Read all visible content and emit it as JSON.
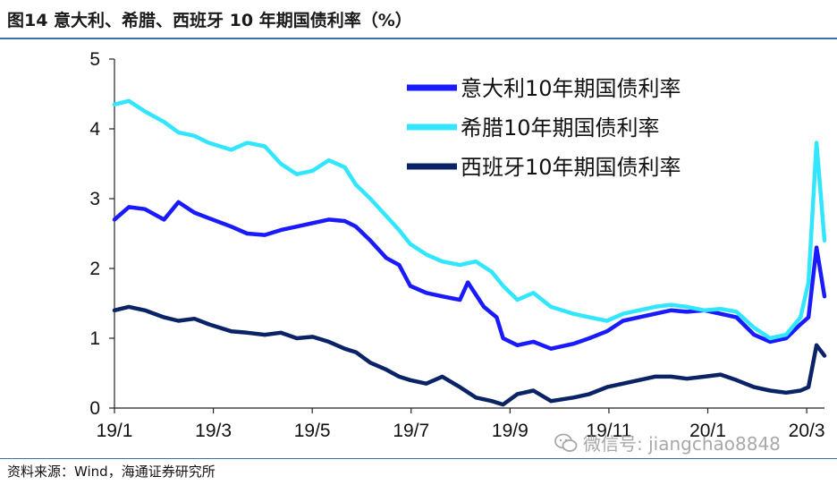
{
  "header": {
    "title": "图14 意大利、希腊、西班牙 10 年期国债利率（%）"
  },
  "footer": {
    "source": "资料来源：Wind，海通证券研究所",
    "watermark": "微信号: jiangchao8848"
  },
  "chart_data": {
    "type": "line",
    "title": "图14 意大利、希腊、西班牙 10 年期国债利率（%）",
    "xlabel": "",
    "ylabel": "",
    "ylim": [
      0,
      5
    ],
    "yticks": [
      "0",
      "1",
      "2",
      "3",
      "4",
      "5"
    ],
    "xticks": [
      "19/1",
      "19/3",
      "19/5",
      "19/7",
      "19/9",
      "19/11",
      "20/1",
      "20/3"
    ],
    "xlim": [
      "2019-01-01",
      "2020-03-20"
    ],
    "legend_position": "top-right",
    "grid": false,
    "series": [
      {
        "name": "意大利10年期国债利率",
        "color": "#1a1aff",
        "points": [
          [
            "2019-01-01",
            2.7
          ],
          [
            "2019-01-10",
            2.88
          ],
          [
            "2019-01-20",
            2.85
          ],
          [
            "2019-02-01",
            2.7
          ],
          [
            "2019-02-10",
            2.95
          ],
          [
            "2019-02-20",
            2.8
          ],
          [
            "2019-03-01",
            2.72
          ],
          [
            "2019-03-15",
            2.6
          ],
          [
            "2019-03-25",
            2.5
          ],
          [
            "2019-04-05",
            2.48
          ],
          [
            "2019-04-15",
            2.55
          ],
          [
            "2019-04-25",
            2.6
          ],
          [
            "2019-05-05",
            2.65
          ],
          [
            "2019-05-15",
            2.7
          ],
          [
            "2019-05-25",
            2.68
          ],
          [
            "2019-06-01",
            2.6
          ],
          [
            "2019-06-10",
            2.4
          ],
          [
            "2019-06-20",
            2.15
          ],
          [
            "2019-06-28",
            2.05
          ],
          [
            "2019-07-05",
            1.75
          ],
          [
            "2019-07-15",
            1.65
          ],
          [
            "2019-07-25",
            1.6
          ],
          [
            "2019-08-05",
            1.55
          ],
          [
            "2019-08-10",
            1.8
          ],
          [
            "2019-08-20",
            1.45
          ],
          [
            "2019-08-28",
            1.3
          ],
          [
            "2019-09-01",
            1.0
          ],
          [
            "2019-09-10",
            0.9
          ],
          [
            "2019-09-20",
            0.95
          ],
          [
            "2019-10-01",
            0.85
          ],
          [
            "2019-10-15",
            0.92
          ],
          [
            "2019-10-25",
            1.0
          ],
          [
            "2019-11-05",
            1.1
          ],
          [
            "2019-11-15",
            1.25
          ],
          [
            "2019-11-25",
            1.3
          ],
          [
            "2019-12-05",
            1.35
          ],
          [
            "2019-12-15",
            1.4
          ],
          [
            "2019-12-25",
            1.38
          ],
          [
            "2020-01-05",
            1.4
          ],
          [
            "2020-01-15",
            1.35
          ],
          [
            "2020-01-25",
            1.3
          ],
          [
            "2020-02-05",
            1.05
          ],
          [
            "2020-02-15",
            0.95
          ],
          [
            "2020-02-25",
            1.0
          ],
          [
            "2020-03-05",
            1.2
          ],
          [
            "2020-03-10",
            1.3
          ],
          [
            "2020-03-15",
            2.3
          ],
          [
            "2020-03-20",
            1.6
          ]
        ]
      },
      {
        "name": "希腊10年期国债利率",
        "color": "#33e6ff",
        "points": [
          [
            "2019-01-01",
            4.35
          ],
          [
            "2019-01-10",
            4.4
          ],
          [
            "2019-01-20",
            4.25
          ],
          [
            "2019-02-01",
            4.1
          ],
          [
            "2019-02-10",
            3.95
          ],
          [
            "2019-02-20",
            3.9
          ],
          [
            "2019-03-01",
            3.8
          ],
          [
            "2019-03-15",
            3.7
          ],
          [
            "2019-03-25",
            3.8
          ],
          [
            "2019-04-05",
            3.75
          ],
          [
            "2019-04-15",
            3.5
          ],
          [
            "2019-04-25",
            3.35
          ],
          [
            "2019-05-05",
            3.4
          ],
          [
            "2019-05-15",
            3.55
          ],
          [
            "2019-05-25",
            3.45
          ],
          [
            "2019-06-01",
            3.2
          ],
          [
            "2019-06-10",
            3.0
          ],
          [
            "2019-06-20",
            2.75
          ],
          [
            "2019-06-28",
            2.55
          ],
          [
            "2019-07-05",
            2.35
          ],
          [
            "2019-07-15",
            2.2
          ],
          [
            "2019-07-25",
            2.1
          ],
          [
            "2019-08-05",
            2.05
          ],
          [
            "2019-08-15",
            2.1
          ],
          [
            "2019-08-25",
            1.95
          ],
          [
            "2019-09-01",
            1.75
          ],
          [
            "2019-09-10",
            1.55
          ],
          [
            "2019-09-20",
            1.65
          ],
          [
            "2019-10-01",
            1.45
          ],
          [
            "2019-10-15",
            1.35
          ],
          [
            "2019-10-25",
            1.3
          ],
          [
            "2019-11-05",
            1.25
          ],
          [
            "2019-11-15",
            1.35
          ],
          [
            "2019-11-25",
            1.4
          ],
          [
            "2019-12-05",
            1.45
          ],
          [
            "2019-12-15",
            1.48
          ],
          [
            "2019-12-25",
            1.45
          ],
          [
            "2020-01-05",
            1.4
          ],
          [
            "2020-01-15",
            1.42
          ],
          [
            "2020-01-25",
            1.38
          ],
          [
            "2020-02-05",
            1.15
          ],
          [
            "2020-02-15",
            1.0
          ],
          [
            "2020-02-25",
            1.05
          ],
          [
            "2020-03-05",
            1.3
          ],
          [
            "2020-03-10",
            1.8
          ],
          [
            "2020-03-15",
            3.8
          ],
          [
            "2020-03-20",
            2.4
          ]
        ]
      },
      {
        "name": "西班牙10年期国债利率",
        "color": "#0a2366",
        "points": [
          [
            "2019-01-01",
            1.4
          ],
          [
            "2019-01-10",
            1.45
          ],
          [
            "2019-01-20",
            1.4
          ],
          [
            "2019-02-01",
            1.3
          ],
          [
            "2019-02-10",
            1.25
          ],
          [
            "2019-02-20",
            1.28
          ],
          [
            "2019-03-01",
            1.2
          ],
          [
            "2019-03-15",
            1.1
          ],
          [
            "2019-03-25",
            1.08
          ],
          [
            "2019-04-05",
            1.05
          ],
          [
            "2019-04-15",
            1.08
          ],
          [
            "2019-04-25",
            1.0
          ],
          [
            "2019-05-05",
            1.02
          ],
          [
            "2019-05-15",
            0.95
          ],
          [
            "2019-05-25",
            0.85
          ],
          [
            "2019-06-01",
            0.8
          ],
          [
            "2019-06-10",
            0.65
          ],
          [
            "2019-06-20",
            0.55
          ],
          [
            "2019-06-28",
            0.45
          ],
          [
            "2019-07-05",
            0.4
          ],
          [
            "2019-07-15",
            0.35
          ],
          [
            "2019-07-25",
            0.45
          ],
          [
            "2019-08-05",
            0.3
          ],
          [
            "2019-08-15",
            0.15
          ],
          [
            "2019-08-25",
            0.1
          ],
          [
            "2019-09-01",
            0.05
          ],
          [
            "2019-09-10",
            0.2
          ],
          [
            "2019-09-20",
            0.25
          ],
          [
            "2019-10-01",
            0.1
          ],
          [
            "2019-10-15",
            0.15
          ],
          [
            "2019-10-25",
            0.2
          ],
          [
            "2019-11-05",
            0.3
          ],
          [
            "2019-11-15",
            0.35
          ],
          [
            "2019-11-25",
            0.4
          ],
          [
            "2019-12-05",
            0.45
          ],
          [
            "2019-12-15",
            0.45
          ],
          [
            "2019-12-25",
            0.42
          ],
          [
            "2020-01-05",
            0.45
          ],
          [
            "2020-01-15",
            0.48
          ],
          [
            "2020-01-25",
            0.4
          ],
          [
            "2020-02-05",
            0.3
          ],
          [
            "2020-02-15",
            0.25
          ],
          [
            "2020-02-25",
            0.22
          ],
          [
            "2020-03-05",
            0.25
          ],
          [
            "2020-03-10",
            0.3
          ],
          [
            "2020-03-15",
            0.9
          ],
          [
            "2020-03-20",
            0.75
          ]
        ]
      }
    ]
  }
}
